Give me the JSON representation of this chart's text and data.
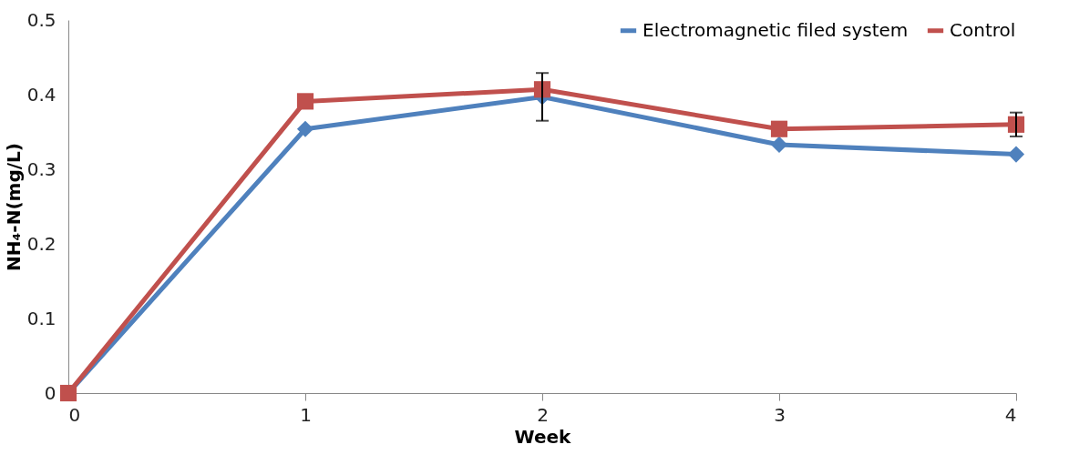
{
  "chart_data": {
    "type": "line",
    "xlabel": "Week",
    "ylabel": "NH₄-N(mg/L)",
    "x": [
      0,
      1,
      2,
      3,
      4
    ],
    "xlim": [
      0,
      4
    ],
    "xticks": [
      0,
      1,
      2,
      3,
      4
    ],
    "ylim": [
      0,
      0.5
    ],
    "yticks": [
      0,
      0.1,
      0.2,
      0.3,
      0.4,
      0.5
    ],
    "series": [
      {
        "name": "Electromagnetic filed system",
        "color": "#4f81bd",
        "marker": "diamond",
        "values": [
          0,
          0.354,
          0.397,
          0.333,
          0.32
        ],
        "errors": [
          null,
          null,
          0.032,
          null,
          null
        ]
      },
      {
        "name": "Control",
        "color": "#c0504d",
        "marker": "square",
        "values": [
          0,
          0.391,
          0.407,
          0.354,
          0.36
        ],
        "errors": [
          null,
          null,
          null,
          null,
          0.016
        ]
      }
    ],
    "legend": "top right",
    "grid": false,
    "line_style": "solid"
  }
}
